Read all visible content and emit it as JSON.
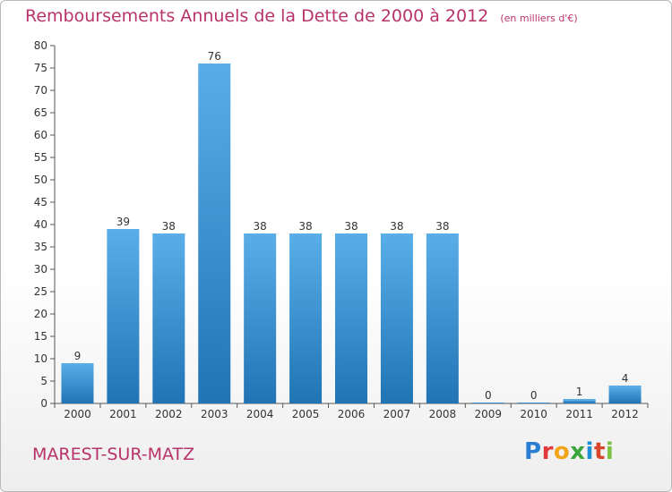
{
  "title": "Remboursements Annuels de la Dette de 2000 à 2012",
  "unit": "(en milliers d'€)",
  "city": "MAREST-SUR-MATZ",
  "brand": {
    "letters": [
      "P",
      "r",
      "o",
      "x",
      "i",
      "t",
      "i"
    ],
    "colors": [
      "#2a7fd4",
      "#e23a3a",
      "#f2a51a",
      "#3aa63a",
      "#1b8fd1",
      "#d9452b",
      "#7cc142"
    ]
  },
  "colors": {
    "bar_light": "#5aaee8",
    "bar_dark": "#2074b4",
    "title": "#b8336a",
    "grid": "#e0e0e0"
  },
  "chart_data": {
    "type": "bar",
    "title": "Remboursements Annuels de la Dette de 2000 à 2012",
    "subtitle": "(en milliers d'€)",
    "xlabel": "",
    "ylabel": "",
    "categories": [
      "2000",
      "2001",
      "2002",
      "2003",
      "2004",
      "2005",
      "2006",
      "2007",
      "2008",
      "2009",
      "2010",
      "2011",
      "2012"
    ],
    "values": [
      9,
      39,
      38,
      76,
      38,
      38,
      38,
      38,
      38,
      0,
      0,
      1,
      4
    ],
    "ylim": [
      0,
      80
    ],
    "yticks": [
      0,
      5,
      10,
      15,
      20,
      25,
      30,
      35,
      40,
      45,
      50,
      55,
      60,
      65,
      70,
      75,
      80
    ],
    "grid": false,
    "legend": "none"
  }
}
